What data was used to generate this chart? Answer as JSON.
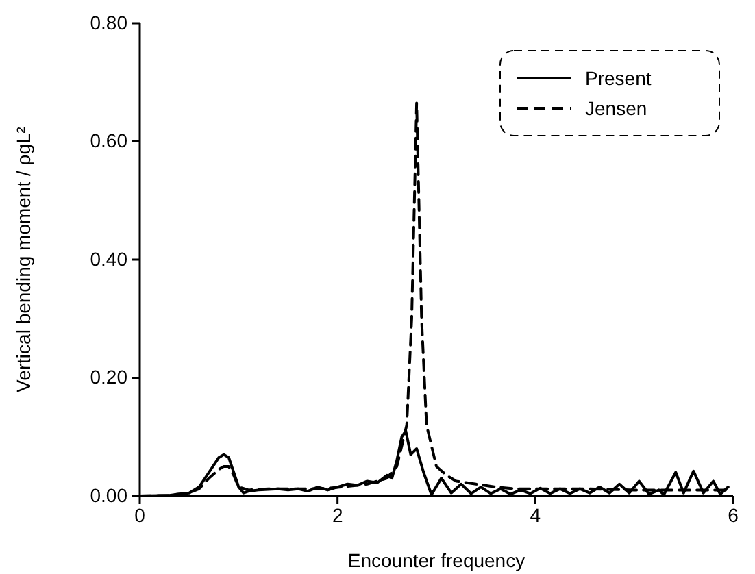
{
  "chart_data": {
    "type": "line",
    "xlabel": "Encounter frequency",
    "ylabel": "Vertical bending moment / ρgL²",
    "xlim": [
      0,
      6
    ],
    "ylim": [
      0,
      0.8
    ],
    "xticks": [
      0,
      2,
      4,
      6
    ],
    "yticks": [
      {
        "value": 0,
        "label": "0.00"
      },
      {
        "value": 0.2,
        "label": "0.20"
      },
      {
        "value": 0.4,
        "label": "0.40"
      },
      {
        "value": 0.6,
        "label": "0.60"
      },
      {
        "value": 0.8,
        "label": "0.80"
      }
    ],
    "legend": "top right",
    "grid": false,
    "series": [
      {
        "name": "Present",
        "color": "#000000",
        "line_style": "solid",
        "x": [
          0,
          0.3,
          0.5,
          0.6,
          0.7,
          0.8,
          0.85,
          0.9,
          0.95,
          1.0,
          1.05,
          1.1,
          1.2,
          1.4,
          1.5,
          1.6,
          1.7,
          1.8,
          1.9,
          2.0,
          2.1,
          2.2,
          2.3,
          2.4,
          2.5,
          2.55,
          2.6,
          2.65,
          2.69,
          2.74,
          2.8,
          2.87,
          2.95,
          3.05,
          3.15,
          3.25,
          3.35,
          3.45,
          3.55,
          3.65,
          3.75,
          3.85,
          3.95,
          4.05,
          4.15,
          4.25,
          4.35,
          4.45,
          4.55,
          4.65,
          4.75,
          4.85,
          4.95,
          5.05,
          5.15,
          5.25,
          5.3,
          5.42,
          5.5,
          5.6,
          5.7,
          5.8,
          5.87,
          5.95
        ],
        "values": [
          0,
          0.001,
          0.005,
          0.015,
          0.04,
          0.065,
          0.07,
          0.065,
          0.04,
          0.015,
          0.005,
          0.008,
          0.01,
          0.012,
          0.01,
          0.012,
          0.008,
          0.015,
          0.01,
          0.015,
          0.02,
          0.018,
          0.025,
          0.022,
          0.035,
          0.03,
          0.06,
          0.1,
          0.11,
          0.07,
          0.08,
          0.04,
          0.002,
          0.03,
          0.005,
          0.02,
          0.004,
          0.015,
          0.004,
          0.012,
          0.003,
          0.01,
          0.004,
          0.013,
          0.004,
          0.012,
          0.004,
          0.012,
          0.005,
          0.015,
          0.005,
          0.02,
          0.005,
          0.025,
          0.003,
          0.01,
          0.002,
          0.04,
          0.005,
          0.042,
          0.005,
          0.025,
          0.003,
          0.015
        ]
      },
      {
        "name": "Jensen",
        "color": "#000000",
        "line_style": "dashed",
        "x": [
          0,
          0.3,
          0.5,
          0.6,
          0.7,
          0.8,
          0.85,
          0.9,
          0.95,
          1.0,
          1.1,
          1.3,
          1.5,
          1.7,
          1.9,
          2.1,
          2.3,
          2.5,
          2.6,
          2.7,
          2.75,
          2.8,
          2.85,
          2.9,
          3.0,
          3.1,
          3.2,
          3.4,
          3.6,
          3.8,
          4.0,
          4.5,
          5.0,
          5.5,
          5.95
        ],
        "values": [
          0,
          0.001,
          0.005,
          0.012,
          0.03,
          0.045,
          0.05,
          0.05,
          0.035,
          0.015,
          0.01,
          0.012,
          0.012,
          0.012,
          0.013,
          0.016,
          0.02,
          0.03,
          0.05,
          0.12,
          0.3,
          0.665,
          0.3,
          0.12,
          0.05,
          0.035,
          0.025,
          0.02,
          0.015,
          0.012,
          0.012,
          0.012,
          0.01,
          0.01,
          0.01
        ]
      }
    ]
  }
}
